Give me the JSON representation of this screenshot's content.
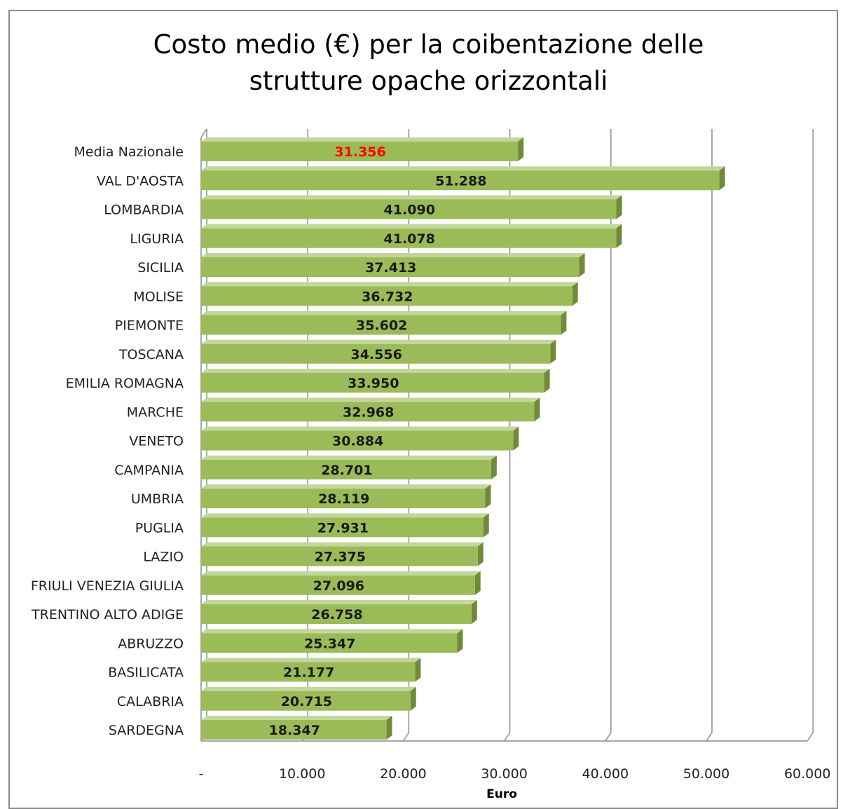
{
  "chart_data": {
    "type": "bar",
    "orientation": "horizontal",
    "title": "Costo medio (€) per la coibentazione delle\nstrutture opache  orizzontali",
    "xlabel": "Euro",
    "ylabel": "",
    "xlim": [
      0,
      60000
    ],
    "grid": true,
    "legend": "none",
    "categories": [
      "Media Nazionale",
      "VAL D'AOSTA",
      "LOMBARDIA",
      "LIGURIA",
      "SICILIA",
      "MOLISE",
      "PIEMONTE",
      "TOSCANA",
      "EMILIA ROMAGNA",
      "MARCHE",
      "VENETO",
      "CAMPANIA",
      "UMBRIA",
      "PUGLIA",
      "LAZIO",
      "FRIULI VENEZIA GIULIA",
      "TRENTINO ALTO ADIGE",
      "ABRUZZO",
      "BASILICATA",
      "CALABRIA",
      "SARDEGNA"
    ],
    "values": [
      31356,
      51288,
      41090,
      41078,
      37413,
      36732,
      35602,
      34556,
      33950,
      32968,
      30884,
      28701,
      28119,
      27931,
      27375,
      27096,
      26758,
      25347,
      21177,
      20715,
      18347
    ],
    "value_labels": [
      "31.356",
      "51.288",
      "41.090",
      "41.078",
      "37.413",
      "36.732",
      "35.602",
      "34.556",
      "33.950",
      "32.968",
      "30.884",
      "28.701",
      "28.119",
      "27.931",
      "27.375",
      "27.096",
      "26.758",
      "25.347",
      "21.177",
      "20.715",
      "18.347"
    ],
    "tick_labels": [
      "-",
      "10.000",
      "20.000",
      "30.000",
      "40.000",
      "50.000",
      "60.000"
    ],
    "colors": {
      "bar_front": "#9bbb59",
      "bar_side": "#6f8a3a",
      "bar_top": "#c3d69b",
      "highlight_label": "#ff0000",
      "label": "#1a1a1a",
      "grid": "#8c8c8c"
    }
  }
}
